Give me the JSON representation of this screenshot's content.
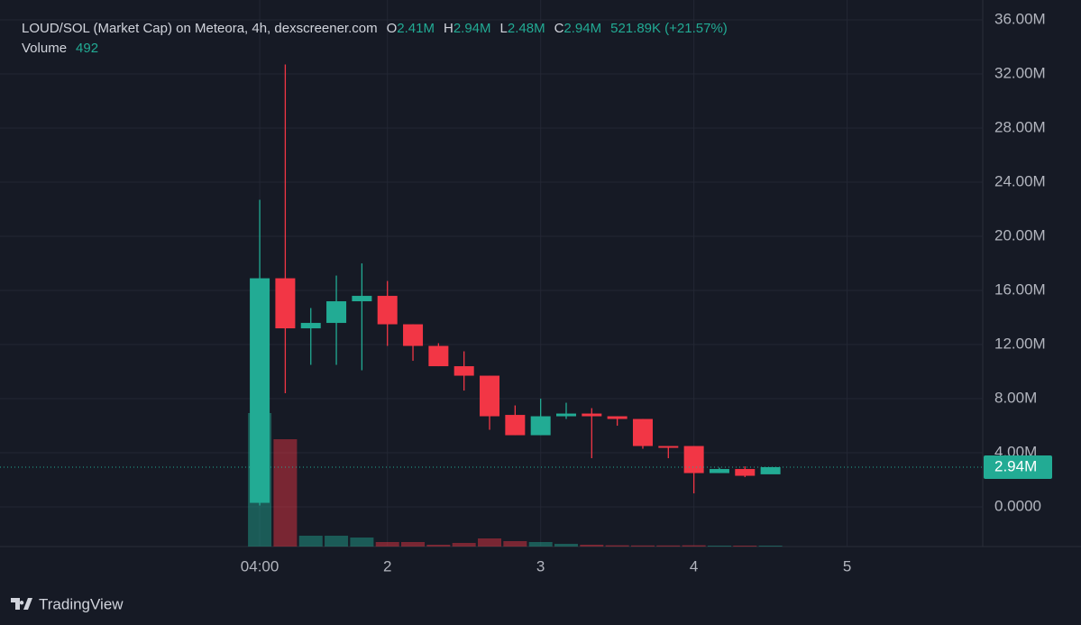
{
  "chart_data": {
    "type": "candlestick",
    "title": "LOUD/SOL (Market Cap) on Meteora, 4h, dexscreener.com",
    "legend": {
      "open_key": "O",
      "open": "2.41M",
      "high_key": "H",
      "high": "2.94M",
      "low_key": "L",
      "low": "2.48M",
      "close_key": "C",
      "close": "2.94M",
      "change": "521.89K (+21.57%)",
      "volume_key": "Volume",
      "volume": "492"
    },
    "x": [
      0,
      1,
      2,
      3,
      4,
      5,
      6,
      7,
      8,
      9,
      10,
      11,
      12,
      13,
      14,
      15,
      16,
      17,
      18,
      19,
      20
    ],
    "open": [
      0.3,
      16.9,
      13.2,
      13.6,
      15.2,
      15.6,
      13.5,
      11.9,
      10.4,
      9.7,
      6.8,
      5.3,
      6.7,
      6.9,
      6.7,
      6.5,
      4.5,
      4.5,
      2.5,
      2.8,
      2.41
    ],
    "high": [
      22.7,
      32.7,
      14.7,
      17.1,
      18.0,
      16.7,
      13.5,
      12.1,
      11.5,
      9.7,
      7.5,
      8.0,
      7.7,
      7.3,
      6.7,
      6.5,
      4.5,
      4.5,
      2.9,
      3.0,
      2.94
    ],
    "low": [
      0.1,
      8.4,
      10.5,
      10.5,
      10.1,
      11.9,
      10.8,
      10.4,
      8.6,
      5.7,
      5.3,
      5.3,
      6.5,
      3.6,
      6.0,
      4.3,
      3.6,
      1.0,
      2.5,
      2.2,
      2.48
    ],
    "close": [
      16.9,
      13.2,
      13.6,
      15.2,
      15.6,
      13.5,
      11.9,
      10.4,
      9.7,
      6.7,
      5.3,
      6.7,
      6.9,
      6.7,
      6.5,
      4.5,
      4.4,
      2.5,
      2.8,
      2.3,
      2.94
    ],
    "volume": [
      74000,
      59500,
      6000,
      6000,
      5000,
      2500,
      2500,
      1000,
      2000,
      4500,
      3000,
      2500,
      1500,
      1000,
      700,
      600,
      600,
      700,
      500,
      500,
      492
    ],
    "up_color": "#22ab94",
    "down_color": "#f23645",
    "ylim": [
      -2.93,
      37.47
    ],
    "yticks": [
      {
        "value": 0,
        "label": "0.0000"
      },
      {
        "value": 4,
        "label": "4.00M"
      },
      {
        "value": 8,
        "label": "8.00M"
      },
      {
        "value": 12,
        "label": "12.00M"
      },
      {
        "value": 16,
        "label": "16.00M"
      },
      {
        "value": 20,
        "label": "20.00M"
      },
      {
        "value": 24,
        "label": "24.00M"
      },
      {
        "value": 28,
        "label": "28.00M"
      },
      {
        "value": 32,
        "label": "32.00M"
      },
      {
        "value": 36,
        "label": "36.00M"
      }
    ],
    "xlim": [
      -10.17,
      28.31
    ],
    "xticks": [
      {
        "value": 0,
        "label": "04:00"
      },
      {
        "value": 5,
        "label": "2"
      },
      {
        "value": 11,
        "label": "3"
      },
      {
        "value": 17,
        "label": "4"
      },
      {
        "value": 23,
        "label": "5"
      }
    ],
    "volume_ylim": [
      0,
      120000
    ],
    "last_price": {
      "value": 2.94,
      "label": "2.94M"
    },
    "grid": true,
    "brand": "TradingView"
  }
}
